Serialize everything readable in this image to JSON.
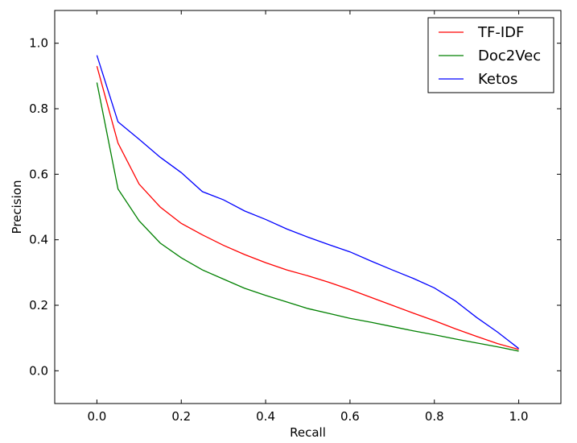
{
  "chart_data": {
    "type": "line",
    "xlabel": "Recall",
    "ylabel": "Precision",
    "xlim": [
      -0.1,
      1.1
    ],
    "ylim": [
      -0.1,
      1.1
    ],
    "xticks": [
      "0.0",
      "0.2",
      "0.4",
      "0.6",
      "0.8",
      "1.0"
    ],
    "yticks": [
      "0.0",
      "0.2",
      "0.4",
      "0.6",
      "0.8",
      "1.0"
    ],
    "grid": false,
    "legend_position": "top-right",
    "x": [
      0.0,
      0.05,
      0.1,
      0.15,
      0.2,
      0.25,
      0.3,
      0.35,
      0.4,
      0.45,
      0.5,
      0.55,
      0.6,
      0.65,
      0.7,
      0.75,
      0.8,
      0.85,
      0.9,
      0.95,
      1.0
    ],
    "series": [
      {
        "name": "TF-IDF",
        "color": "#ff0000",
        "values": [
          0.93,
          0.695,
          0.57,
          0.5,
          0.45,
          0.415,
          0.383,
          0.355,
          0.33,
          0.308,
          0.29,
          0.27,
          0.248,
          0.224,
          0.2,
          0.176,
          0.153,
          0.128,
          0.105,
          0.083,
          0.065
        ]
      },
      {
        "name": "Doc2Vec",
        "color": "#008000",
        "values": [
          0.88,
          0.555,
          0.458,
          0.39,
          0.345,
          0.308,
          0.28,
          0.252,
          0.23,
          0.21,
          0.19,
          0.175,
          0.16,
          0.148,
          0.135,
          0.122,
          0.11,
          0.097,
          0.085,
          0.073,
          0.06
        ]
      },
      {
        "name": "Ketos",
        "color": "#0000ff",
        "values": [
          0.963,
          0.76,
          0.707,
          0.652,
          0.605,
          0.547,
          0.522,
          0.488,
          0.462,
          0.433,
          0.408,
          0.385,
          0.363,
          0.335,
          0.308,
          0.282,
          0.253,
          0.213,
          0.163,
          0.118,
          0.068
        ]
      }
    ]
  }
}
